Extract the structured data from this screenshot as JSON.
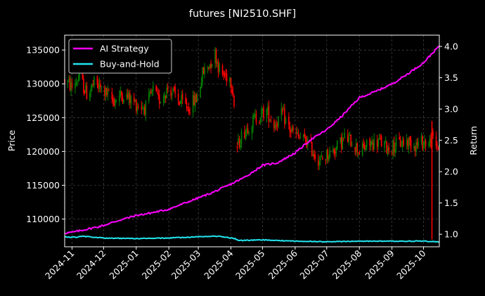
{
  "chart_data": {
    "type": "candlestick+line",
    "title": "futures [NI2510.SHF]",
    "ylabel_left": "Price",
    "ylabel_right": "Return",
    "ylim_left": [
      105900,
      137200
    ],
    "ylim_right": [
      0.8,
      4.18
    ],
    "xlim": [
      "2024-10-25",
      "2025-10-16"
    ],
    "grid": true,
    "legend_placement": "top-left",
    "x_ticks": [
      "2024-11",
      "2024-12",
      "2025-01",
      "2025-02",
      "2025-03",
      "2025-04",
      "2025-05",
      "2025-06",
      "2025-07",
      "2025-08",
      "2025-09",
      "2025-10"
    ],
    "y_ticks_left": [
      110000,
      115000,
      120000,
      125000,
      130000,
      135000
    ],
    "y_ticks_right": [
      "1.0",
      "1.5",
      "2.0",
      "2.5",
      "3.0",
      "3.5",
      "4.0"
    ],
    "colors": {
      "up": "#008000",
      "down": "#ff0000",
      "ai": "#ff00ff",
      "bh": "#22e6f0",
      "grid": "#555555"
    },
    "price_anchors": [
      [
        "2024-10-25",
        130500
      ],
      [
        "2024-11-01",
        129500
      ],
      [
        "2024-11-08",
        131000
      ],
      [
        "2024-11-15",
        128500
      ],
      [
        "2024-11-22",
        130000
      ],
      [
        "2024-12-01",
        129000
      ],
      [
        "2024-12-10",
        127500
      ],
      [
        "2024-12-20",
        128500
      ],
      [
        "2025-01-01",
        127000
      ],
      [
        "2025-01-10",
        126500
      ],
      [
        "2025-01-17",
        129000
      ],
      [
        "2025-01-22",
        127500
      ],
      [
        "2025-02-01",
        129500
      ],
      [
        "2025-02-10",
        127500
      ],
      [
        "2025-02-20",
        126500
      ],
      [
        "2025-02-28",
        128000
      ],
      [
        "2025-03-05",
        131500
      ],
      [
        "2025-03-12",
        133000
      ],
      [
        "2025-03-17",
        134500
      ],
      [
        "2025-03-22",
        131500
      ],
      [
        "2025-03-31",
        131000
      ],
      [
        "2025-04-03",
        129000
      ],
      [
        "2025-04-07",
        120500
      ],
      [
        "2025-04-10",
        122000
      ],
      [
        "2025-04-16",
        123500
      ],
      [
        "2025-04-25",
        125000
      ],
      [
        "2025-05-05",
        126000
      ],
      [
        "2025-05-12",
        124000
      ],
      [
        "2025-05-20",
        125500
      ],
      [
        "2025-05-28",
        123000
      ],
      [
        "2025-06-05",
        122000
      ],
      [
        "2025-06-12",
        121500
      ],
      [
        "2025-06-20",
        119500
      ],
      [
        "2025-06-25",
        118500
      ],
      [
        "2025-07-01",
        119500
      ],
      [
        "2025-07-10",
        120500
      ],
      [
        "2025-07-18",
        122000
      ],
      [
        "2025-07-25",
        121500
      ],
      [
        "2025-08-01",
        120000
      ],
      [
        "2025-08-10",
        121000
      ],
      [
        "2025-08-20",
        121500
      ],
      [
        "2025-08-28",
        120500
      ],
      [
        "2025-09-05",
        121000
      ],
      [
        "2025-09-15",
        121500
      ],
      [
        "2025-09-25",
        121000
      ],
      [
        "2025-10-02",
        121500
      ],
      [
        "2025-10-06",
        121000
      ],
      [
        "2025-10-09",
        122000
      ],
      [
        "2025-10-13",
        120800
      ],
      [
        "2025-10-16",
        121000
      ]
    ],
    "gap": [
      "2025-04-05",
      "2025-04-06"
    ],
    "spike": {
      "date": "2025-10-09",
      "low": 107000
    },
    "series": [
      {
        "name": "AI Strategy",
        "color": "#ff00ff",
        "points": [
          [
            "2024-10-25",
            1.02
          ],
          [
            "2024-11-01",
            1.03
          ],
          [
            "2024-11-15",
            1.08
          ],
          [
            "2024-12-01",
            1.14
          ],
          [
            "2024-12-15",
            1.22
          ],
          [
            "2025-01-01",
            1.3
          ],
          [
            "2025-01-15",
            1.34
          ],
          [
            "2025-02-01",
            1.4
          ],
          [
            "2025-02-15",
            1.49
          ],
          [
            "2025-03-01",
            1.58
          ],
          [
            "2025-03-15",
            1.67
          ],
          [
            "2025-04-01",
            1.8
          ],
          [
            "2025-04-15",
            1.92
          ],
          [
            "2025-05-01",
            2.1
          ],
          [
            "2025-05-15",
            2.14
          ],
          [
            "2025-06-01",
            2.3
          ],
          [
            "2025-06-15",
            2.5
          ],
          [
            "2025-07-01",
            2.67
          ],
          [
            "2025-07-15",
            2.88
          ],
          [
            "2025-08-01",
            3.18
          ],
          [
            "2025-08-15",
            3.27
          ],
          [
            "2025-09-01",
            3.4
          ],
          [
            "2025-09-15",
            3.55
          ],
          [
            "2025-10-01",
            3.74
          ],
          [
            "2025-10-16",
            4.01
          ]
        ]
      },
      {
        "name": "Buy-and-Hold",
        "color": "#22e6f0",
        "points": [
          [
            "2024-10-25",
            0.96
          ],
          [
            "2024-11-05",
            0.95
          ],
          [
            "2024-11-10",
            0.97
          ],
          [
            "2024-12-01",
            0.94
          ],
          [
            "2025-01-01",
            0.93
          ],
          [
            "2025-02-01",
            0.94
          ],
          [
            "2025-03-01",
            0.96
          ],
          [
            "2025-03-20",
            0.97
          ],
          [
            "2025-04-05",
            0.93
          ],
          [
            "2025-04-08",
            0.9
          ],
          [
            "2025-05-01",
            0.91
          ],
          [
            "2025-06-01",
            0.89
          ],
          [
            "2025-07-01",
            0.88
          ],
          [
            "2025-08-01",
            0.89
          ],
          [
            "2025-09-01",
            0.89
          ],
          [
            "2025-10-01",
            0.89
          ],
          [
            "2025-10-16",
            0.88
          ]
        ]
      }
    ]
  }
}
